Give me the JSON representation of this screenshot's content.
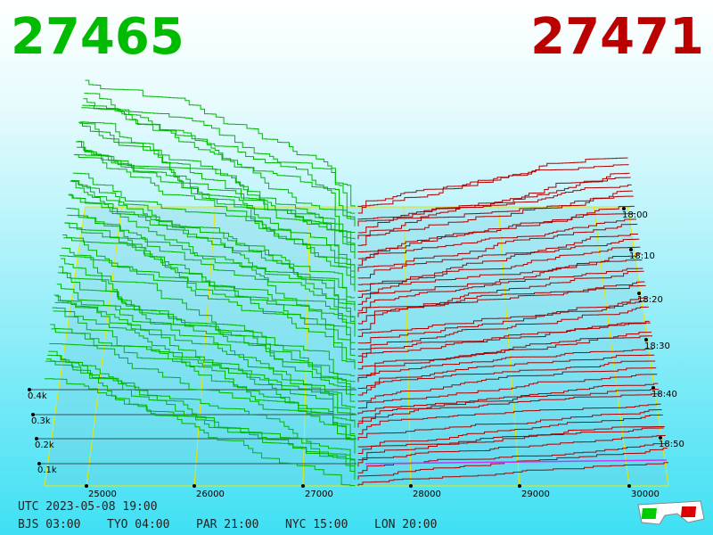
{
  "header": {
    "bid": "27465",
    "ask": "27471"
  },
  "axes": {
    "price_labels": [
      "25000",
      "26000",
      "27000",
      "28000",
      "29000",
      "30000"
    ],
    "volume_labels": [
      "0.1k",
      "0.2k",
      "0.3k",
      "0.4k"
    ],
    "time_labels": [
      "18:00",
      "18:10",
      "18:20",
      "18:30",
      "18:40",
      "18:50"
    ]
  },
  "footer": {
    "utc": "UTC 2023-05-08 19:00",
    "clocks": [
      "BJS 03:00",
      "TYO 04:00",
      "PAR 21:00",
      "NYC 15:00",
      "LON 20:00"
    ]
  }
}
